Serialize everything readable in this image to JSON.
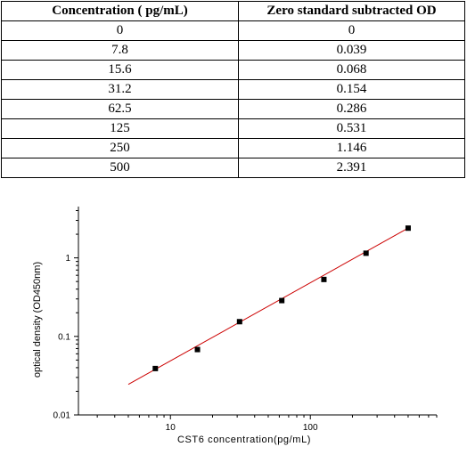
{
  "table": {
    "headers": [
      "Concentration ( pg/mL)",
      "Zero standard subtracted OD"
    ],
    "rows": [
      [
        "0",
        "0"
      ],
      [
        "7.8",
        "0.039"
      ],
      [
        "15.6",
        "0.068"
      ],
      [
        "31.2",
        "0.154"
      ],
      [
        "62.5",
        "0.286"
      ],
      [
        "125",
        "0.531"
      ],
      [
        "250",
        "1.146"
      ],
      [
        "500",
        "2.391"
      ]
    ]
  },
  "chart_data": {
    "type": "scatter",
    "xlabel": "CST6  concentration(pg/mL)",
    "ylabel": "optical density (OD450nm)",
    "xscale": "log",
    "yscale": "log",
    "xlim": [
      2.2,
      800
    ],
    "ylim": [
      0.01,
      4.5
    ],
    "xticks": [
      10,
      100
    ],
    "xtick_labels": [
      "10",
      "100"
    ],
    "yticks": [
      0.01,
      0.1,
      1
    ],
    "ytick_labels": [
      "0.01",
      "0.1",
      "1"
    ],
    "grid": false,
    "points": {
      "x": [
        7.8,
        15.6,
        31.2,
        62.5,
        125,
        250,
        500
      ],
      "y": [
        0.039,
        0.068,
        0.154,
        0.286,
        0.531,
        1.146,
        2.391
      ]
    },
    "fit_line": {
      "x": [
        5,
        500
      ],
      "y": [
        0.0245,
        2.39
      ],
      "color": "#cc0000"
    },
    "marker_color": "#000000"
  }
}
